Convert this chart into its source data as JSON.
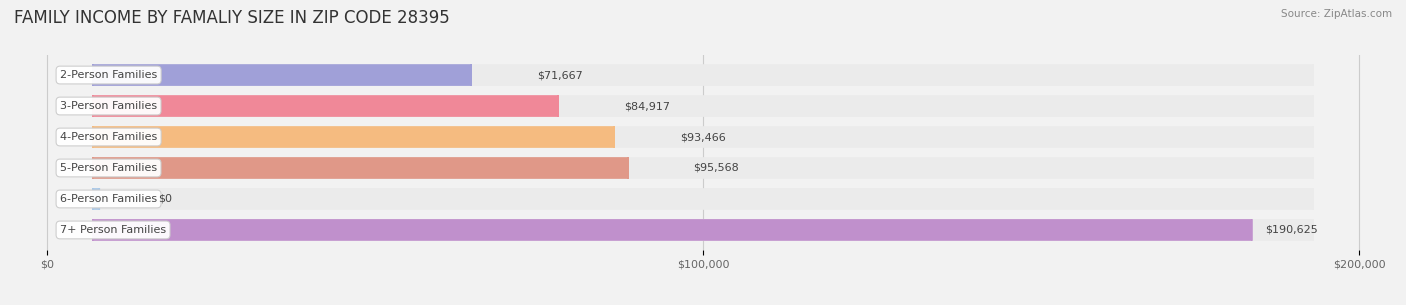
{
  "title": "FAMILY INCOME BY FAMALIY SIZE IN ZIP CODE 28395",
  "source": "Source: ZipAtlas.com",
  "categories": [
    "2-Person Families",
    "3-Person Families",
    "4-Person Families",
    "5-Person Families",
    "6-Person Families",
    "7+ Person Families"
  ],
  "values": [
    71667,
    84917,
    93466,
    95568,
    0,
    190625
  ],
  "value_labels": [
    "$71,667",
    "$84,917",
    "$93,466",
    "$95,568",
    "$0",
    "$190,625"
  ],
  "bar_colors": [
    "#a0a0d8",
    "#f08898",
    "#f5bb80",
    "#e09888",
    "#a8c8e8",
    "#c090cc"
  ],
  "xlim": [
    0,
    200000
  ],
  "xticks": [
    0,
    100000,
    200000
  ],
  "xtick_labels": [
    "$0",
    "$100,000",
    "$200,000"
  ],
  "bg_color": "#f2f2f2",
  "title_fontsize": 12,
  "label_fontsize": 8,
  "value_fontsize": 8,
  "source_fontsize": 7.5
}
